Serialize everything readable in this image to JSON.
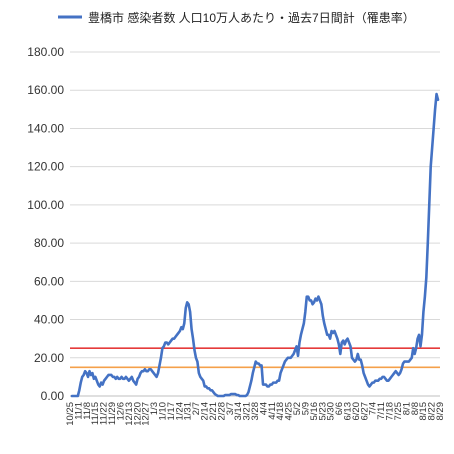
{
  "chart_data": {
    "type": "line",
    "title": "",
    "xlabel": "",
    "ylabel": "",
    "legend": {
      "position": "top",
      "label": "豊橋市 感染者数 人口10万人あたり・過去7日間計（罹患率）"
    },
    "ylim": [
      0,
      180
    ],
    "yticks": [
      "0.00",
      "20.00",
      "40.00",
      "60.00",
      "80.00",
      "100.00",
      "120.00",
      "140.00",
      "160.00",
      "180.00"
    ],
    "grid": "horizontal",
    "x_tick_labels": [
      "10/25",
      "11/1",
      "11/8",
      "11/15",
      "11/22",
      "11/29",
      "12/6",
      "12/13",
      "12/20",
      "12/27",
      "1/3",
      "1/10",
      "1/17",
      "1/24",
      "1/31",
      "2/7",
      "2/14",
      "2/21",
      "2/28",
      "3/7",
      "3/14",
      "3/21",
      "3/28",
      "4/4",
      "4/11",
      "4/18",
      "4/25",
      "5/2",
      "5/9",
      "5/16",
      "5/23",
      "5/30",
      "6/6",
      "6/13",
      "6/20",
      "6/27",
      "7/4",
      "7/11",
      "7/18",
      "7/25",
      "8/1",
      "8/8",
      "8/15",
      "8/22",
      "8/29"
    ],
    "reference_lines": [
      {
        "value": 25,
        "color": "#e53b3b"
      },
      {
        "value": 15,
        "color": "#f5a04a"
      }
    ],
    "series_color": "#4472c4",
    "series": [
      {
        "name": "豊橋市 感染者数 人口10万人あたり・過去7日間計（罹患率）",
        "values": [
          0,
          0,
          0,
          0,
          0,
          3,
          7,
          10,
          11,
          13,
          12,
          10,
          13,
          11,
          12,
          9,
          10,
          8,
          6,
          5,
          7,
          6,
          8,
          9,
          10,
          11,
          11,
          11,
          10,
          10,
          9,
          10,
          9,
          9,
          10,
          9,
          9,
          10,
          9,
          8,
          9,
          10,
          8,
          7,
          6,
          9,
          10,
          12,
          13,
          13,
          14,
          13,
          13,
          14,
          14,
          13,
          12,
          11,
          10,
          12,
          16,
          20,
          25,
          26,
          28,
          28,
          27,
          28,
          29,
          30,
          30,
          31,
          32,
          33,
          34,
          36,
          35,
          38,
          46,
          49,
          48,
          44,
          35,
          30,
          24,
          20,
          18,
          12,
          10,
          9,
          8,
          5,
          5,
          4,
          4,
          3,
          3,
          2,
          1,
          0.5,
          0,
          0,
          0,
          0,
          0,
          0.5,
          0.5,
          0.5,
          0.5,
          1,
          1,
          1,
          1,
          0.5,
          0.5,
          0,
          0,
          0,
          0,
          0,
          0.5,
          2,
          5,
          8,
          12,
          15,
          18,
          17,
          17,
          16,
          16,
          6,
          6,
          6,
          5,
          5,
          6,
          6,
          7,
          7,
          7,
          8,
          8,
          12,
          14,
          16,
          18,
          19,
          20,
          20,
          20,
          21,
          22,
          24,
          26,
          21,
          28,
          32,
          35,
          38,
          44,
          52,
          52,
          50,
          50,
          48,
          49,
          51,
          50,
          52,
          50,
          48,
          42,
          38,
          35,
          32,
          32,
          30,
          34,
          33,
          34,
          32,
          30,
          27,
          22,
          28,
          29,
          27,
          29,
          30,
          28,
          26,
          20,
          19,
          18,
          19,
          22,
          19,
          19,
          16,
          12,
          10,
          8,
          6,
          5,
          6,
          7,
          7,
          8,
          8,
          8,
          9,
          9,
          10,
          10,
          9,
          8,
          8,
          9,
          10,
          11,
          12,
          13,
          12,
          11,
          12,
          14,
          17,
          18,
          18,
          18,
          18,
          19,
          20,
          25,
          22,
          25,
          30,
          32,
          26,
          32,
          44,
          52,
          62,
          80,
          100,
          120,
          130,
          140,
          150,
          158,
          155
        ]
      }
    ]
  }
}
